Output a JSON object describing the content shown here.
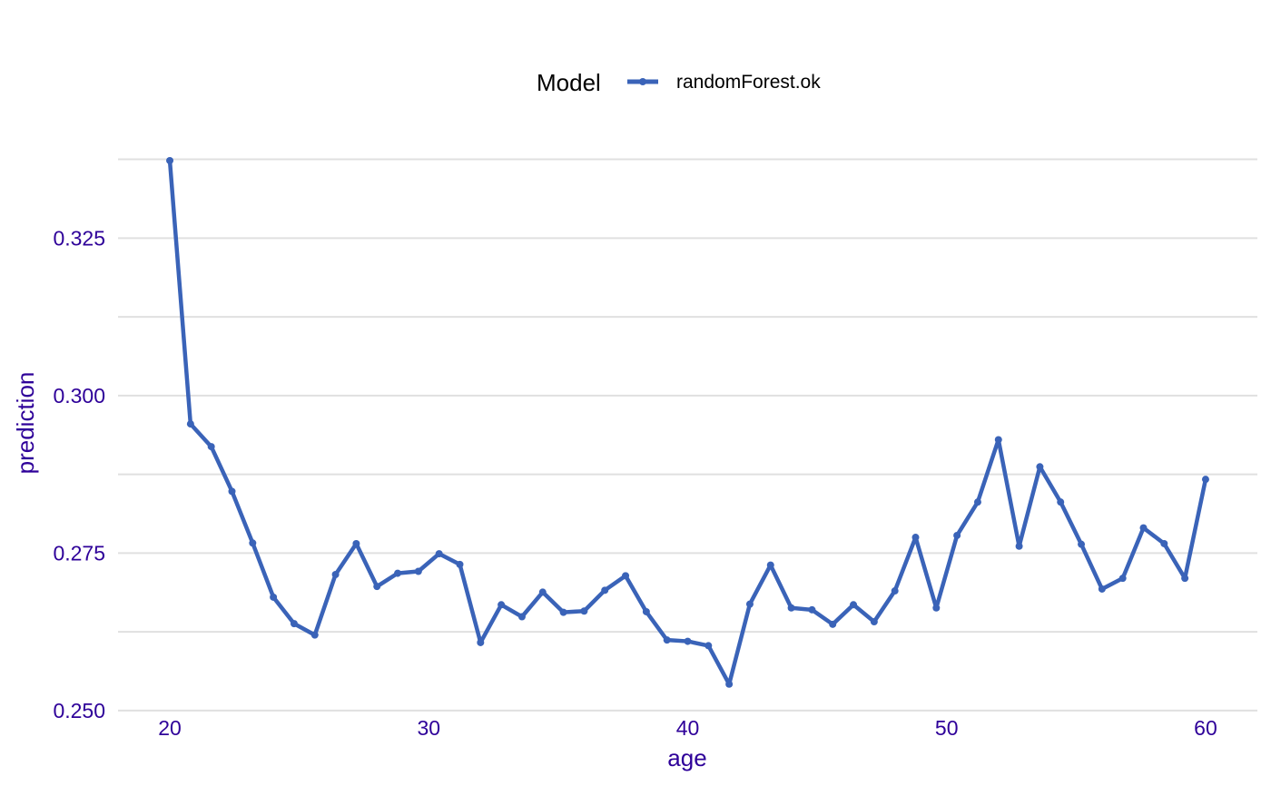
{
  "chart_data": {
    "type": "line",
    "xlabel": "age",
    "ylabel": "prediction",
    "xlim": [
      18,
      62
    ],
    "ylim": [
      0.2497,
      0.3383
    ],
    "x_ticks": [
      20,
      30,
      40,
      50,
      60
    ],
    "y_ticks": [
      0.25,
      0.275,
      0.3,
      0.325
    ],
    "y_tick_labels": [
      "0.250",
      "0.275",
      "0.300",
      "0.325"
    ],
    "y_minor_gridlines": [
      0.2625,
      0.2875,
      0.3125,
      0.3375
    ],
    "grid": true,
    "legend": {
      "title": "Model",
      "position": "top"
    },
    "series": [
      {
        "name": "randomForest.ok",
        "color": "#3a63b8",
        "x": [
          20,
          20.8,
          21.6,
          22.4,
          23.2,
          24,
          24.8,
          25.6,
          26.4,
          27.2,
          28,
          28.8,
          29.6,
          30.4,
          31.2,
          32,
          32.8,
          33.6,
          34.4,
          35.2,
          36,
          36.8,
          37.6,
          38.4,
          39.2,
          40,
          40.8,
          41.6,
          42.4,
          43.2,
          44,
          44.8,
          45.6,
          46.4,
          47.2,
          48,
          48.8,
          49.6,
          50.4,
          51.2,
          52,
          52.8,
          53.6,
          54.4,
          55.2,
          56,
          56.8,
          57.6,
          58.4,
          59.2,
          60
        ],
        "values": [
          0.3373,
          0.2955,
          0.2919,
          0.2848,
          0.2766,
          0.268,
          0.2638,
          0.262,
          0.2716,
          0.2765,
          0.2697,
          0.2718,
          0.2721,
          0.2749,
          0.2732,
          0.2608,
          0.2668,
          0.2649,
          0.2688,
          0.2656,
          0.2658,
          0.2691,
          0.2714,
          0.2657,
          0.2612,
          0.261,
          0.2603,
          0.2542,
          0.2669,
          0.2731,
          0.2663,
          0.266,
          0.2637,
          0.2668,
          0.2641,
          0.269,
          0.2775,
          0.2663,
          0.2778,
          0.2831,
          0.293,
          0.2761,
          0.2887,
          0.2831,
          0.2764,
          0.2693,
          0.271,
          0.279,
          0.2765,
          0.271,
          0.2867
        ]
      }
    ]
  }
}
